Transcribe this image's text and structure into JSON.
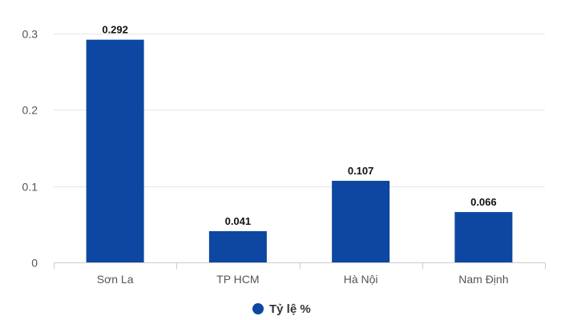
{
  "chart_data": {
    "type": "bar",
    "categories": [
      "Sơn La",
      "TP HCM",
      "Hà Nội",
      "Nam Định"
    ],
    "series": [
      {
        "name": "Tỷ lệ %",
        "values": [
          0.292,
          0.041,
          0.107,
          0.066
        ],
        "data_labels": [
          "0.292",
          "0.041",
          "0.107",
          "0.066"
        ],
        "color": "#0d47a1"
      }
    ],
    "y_ticks": [
      0,
      0.1,
      0.2,
      0.3
    ],
    "y_tick_labels": [
      "0",
      "0.1",
      "0.2",
      "0.3"
    ],
    "ylim": [
      0,
      0.3
    ],
    "grid": true,
    "legend": {
      "position": "bottom-center",
      "label": "Tỷ lệ %"
    },
    "colors": {
      "bar": "#0d47a1",
      "grid": "#e6e6e6",
      "axis": "#cccccc"
    }
  }
}
